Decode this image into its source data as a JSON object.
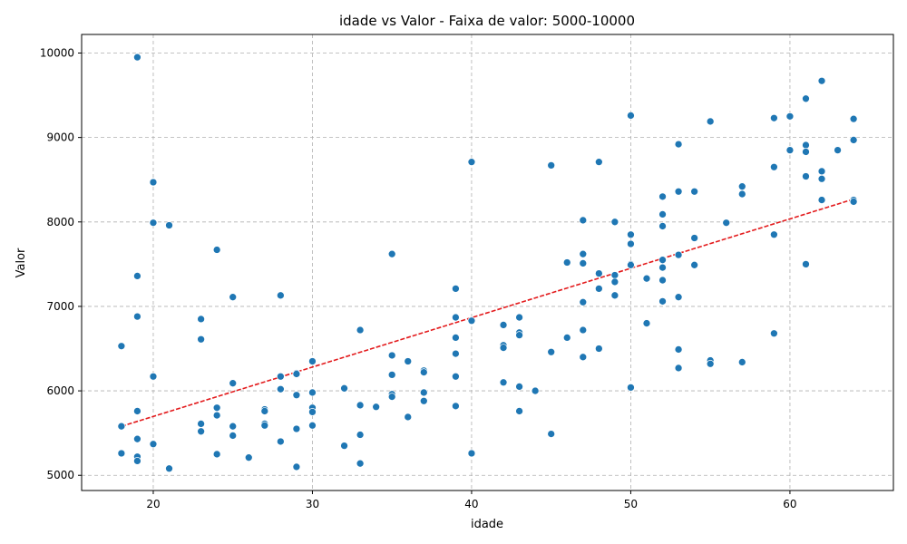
{
  "chart_data": {
    "type": "scatter",
    "title": "idade vs Valor - Faixa de valor: 5000-10000",
    "xlabel": "idade",
    "ylabel": "Valor",
    "xlim": [
      15.5,
      66.5
    ],
    "ylim": [
      4820,
      10220
    ],
    "xticks": [
      20,
      30,
      40,
      50,
      60
    ],
    "yticks": [
      5000,
      6000,
      7000,
      8000,
      9000,
      10000
    ],
    "grid": true,
    "point_color": "#1f77b4",
    "trend_color": "#e31a1c",
    "trendline": {
      "x": [
        18,
        64
      ],
      "y": [
        5580,
        8270
      ]
    },
    "points": [
      [
        19,
        9950
      ],
      [
        20,
        8470
      ],
      [
        20,
        7990
      ],
      [
        21,
        7960
      ],
      [
        19,
        7360
      ],
      [
        19,
        6880
      ],
      [
        18,
        6530
      ],
      [
        20,
        6170
      ],
      [
        19,
        5760
      ],
      [
        18,
        5580
      ],
      [
        19,
        5430
      ],
      [
        18,
        5260
      ],
      [
        19,
        5220
      ],
      [
        19,
        5170
      ],
      [
        20,
        5370
      ],
      [
        21,
        5080
      ],
      [
        24,
        7670
      ],
      [
        25,
        7110
      ],
      [
        23,
        6850
      ],
      [
        23,
        6610
      ],
      [
        25,
        6090
      ],
      [
        24,
        5800
      ],
      [
        24,
        5710
      ],
      [
        23,
        5610
      ],
      [
        23,
        5520
      ],
      [
        25,
        5580
      ],
      [
        25,
        5470
      ],
      [
        24,
        5250
      ],
      [
        26,
        5210
      ],
      [
        28,
        7130
      ],
      [
        27,
        5780
      ],
      [
        27,
        5760
      ],
      [
        27,
        5610
      ],
      [
        27,
        5590
      ],
      [
        28,
        6170
      ],
      [
        28,
        6020
      ],
      [
        28,
        5400
      ],
      [
        29,
        6210
      ],
      [
        29,
        6200
      ],
      [
        29,
        5950
      ],
      [
        29,
        5550
      ],
      [
        29,
        5100
      ],
      [
        30,
        6350
      ],
      [
        30,
        5980
      ],
      [
        30,
        5800
      ],
      [
        30,
        5750
      ],
      [
        30,
        5590
      ],
      [
        32,
        6030
      ],
      [
        32,
        5350
      ],
      [
        33,
        6720
      ],
      [
        33,
        5830
      ],
      [
        33,
        5480
      ],
      [
        33,
        5140
      ],
      [
        34,
        5810
      ],
      [
        35,
        7620
      ],
      [
        35,
        6420
      ],
      [
        35,
        6190
      ],
      [
        35,
        5960
      ],
      [
        35,
        5930
      ],
      [
        36,
        6350
      ],
      [
        36,
        5690
      ],
      [
        37,
        6240
      ],
      [
        37,
        6220
      ],
      [
        37,
        5980
      ],
      [
        37,
        5880
      ],
      [
        39,
        7210
      ],
      [
        39,
        6870
      ],
      [
        39,
        6630
      ],
      [
        39,
        6440
      ],
      [
        39,
        6170
      ],
      [
        39,
        5820
      ],
      [
        40,
        8710
      ],
      [
        40,
        6830
      ],
      [
        40,
        5260
      ],
      [
        42,
        6780
      ],
      [
        42,
        6540
      ],
      [
        42,
        6510
      ],
      [
        42,
        6100
      ],
      [
        43,
        6870
      ],
      [
        43,
        6690
      ],
      [
        43,
        6660
      ],
      [
        43,
        6050
      ],
      [
        43,
        5760
      ],
      [
        44,
        6000
      ],
      [
        45,
        8670
      ],
      [
        45,
        6460
      ],
      [
        45,
        5490
      ],
      [
        46,
        7520
      ],
      [
        46,
        6630
      ],
      [
        47,
        8020
      ],
      [
        47,
        7620
      ],
      [
        47,
        7510
      ],
      [
        47,
        7050
      ],
      [
        47,
        6720
      ],
      [
        47,
        6400
      ],
      [
        48,
        8710
      ],
      [
        48,
        7390
      ],
      [
        48,
        7210
      ],
      [
        48,
        6500
      ],
      [
        49,
        8000
      ],
      [
        49,
        7370
      ],
      [
        49,
        7290
      ],
      [
        49,
        7130
      ],
      [
        50,
        9260
      ],
      [
        50,
        7850
      ],
      [
        50,
        7740
      ],
      [
        50,
        7500
      ],
      [
        50,
        7490
      ],
      [
        50,
        6040
      ],
      [
        51,
        7330
      ],
      [
        51,
        6800
      ],
      [
        52,
        8300
      ],
      [
        52,
        8090
      ],
      [
        52,
        7950
      ],
      [
        52,
        7550
      ],
      [
        52,
        7460
      ],
      [
        52,
        7310
      ],
      [
        52,
        7060
      ],
      [
        53,
        8920
      ],
      [
        53,
        8360
      ],
      [
        53,
        7610
      ],
      [
        53,
        7110
      ],
      [
        53,
        6490
      ],
      [
        53,
        6270
      ],
      [
        54,
        8360
      ],
      [
        54,
        7810
      ],
      [
        54,
        7490
      ],
      [
        55,
        9190
      ],
      [
        55,
        6360
      ],
      [
        55,
        6320
      ],
      [
        56,
        7990
      ],
      [
        57,
        8420
      ],
      [
        57,
        8330
      ],
      [
        57,
        6340
      ],
      [
        59,
        9230
      ],
      [
        59,
        8650
      ],
      [
        59,
        7850
      ],
      [
        59,
        6680
      ],
      [
        60,
        9250
      ],
      [
        60,
        8850
      ],
      [
        61,
        9460
      ],
      [
        61,
        8910
      ],
      [
        61,
        8830
      ],
      [
        61,
        8540
      ],
      [
        61,
        7500
      ],
      [
        62,
        9670
      ],
      [
        62,
        8600
      ],
      [
        62,
        8510
      ],
      [
        62,
        8260
      ],
      [
        63,
        8850
      ],
      [
        64,
        9220
      ],
      [
        64,
        8970
      ],
      [
        64,
        8260
      ],
      [
        64,
        8240
      ]
    ]
  }
}
